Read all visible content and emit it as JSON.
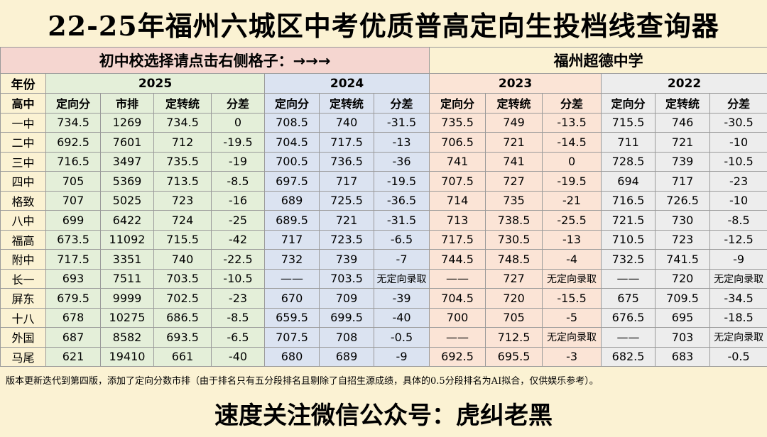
{
  "title": "22-25年福州六城区中考优质普高定向生投档线查询器",
  "selector": {
    "prompt": "初中校选择请点击右侧格子：→→→",
    "selected_school": "福州超德中学"
  },
  "header": {
    "year_label": "年份",
    "school_label": "高中",
    "years": [
      "2025",
      "2024",
      "2023",
      "2022"
    ],
    "cols_2025": [
      "定向分",
      "市排",
      "定转统",
      "分差"
    ],
    "cols_other": [
      "定向分",
      "定转统",
      "分差"
    ]
  },
  "rows": [
    {
      "school": "一中",
      "y2025": [
        "734.5",
        "1269",
        "734.5",
        "0"
      ],
      "y2024": [
        "708.5",
        "740",
        "-31.5"
      ],
      "y2023": [
        "735.5",
        "749",
        "-13.5"
      ],
      "y2022": [
        "715.5",
        "746",
        "-30.5"
      ]
    },
    {
      "school": "二中",
      "y2025": [
        "692.5",
        "7601",
        "712",
        "-19.5"
      ],
      "y2024": [
        "704.5",
        "717.5",
        "-13"
      ],
      "y2023": [
        "706.5",
        "721",
        "-14.5"
      ],
      "y2022": [
        "711",
        "721",
        "-10"
      ]
    },
    {
      "school": "三中",
      "y2025": [
        "716.5",
        "3497",
        "735.5",
        "-19"
      ],
      "y2024": [
        "700.5",
        "736.5",
        "-36"
      ],
      "y2023": [
        "741",
        "741",
        "0"
      ],
      "y2022": [
        "728.5",
        "739",
        "-10.5"
      ]
    },
    {
      "school": "四中",
      "y2025": [
        "705",
        "5369",
        "713.5",
        "-8.5"
      ],
      "y2024": [
        "697.5",
        "717",
        "-19.5"
      ],
      "y2023": [
        "707.5",
        "727",
        "-19.5"
      ],
      "y2022": [
        "694",
        "717",
        "-23"
      ]
    },
    {
      "school": "格致",
      "y2025": [
        "707",
        "5025",
        "723",
        "-16"
      ],
      "y2024": [
        "689",
        "725.5",
        "-36.5"
      ],
      "y2023": [
        "714",
        "735",
        "-21"
      ],
      "y2022": [
        "716.5",
        "726.5",
        "-10"
      ]
    },
    {
      "school": "八中",
      "y2025": [
        "699",
        "6422",
        "724",
        "-25"
      ],
      "y2024": [
        "689.5",
        "721",
        "-31.5"
      ],
      "y2023": [
        "713",
        "738.5",
        "-25.5"
      ],
      "y2022": [
        "721.5",
        "730",
        "-8.5"
      ]
    },
    {
      "school": "福高",
      "y2025": [
        "673.5",
        "11092",
        "715.5",
        "-42"
      ],
      "y2024": [
        "717",
        "723.5",
        "-6.5"
      ],
      "y2023": [
        "717.5",
        "730.5",
        "-13"
      ],
      "y2022": [
        "710.5",
        "723",
        "-12.5"
      ]
    },
    {
      "school": "附中",
      "y2025": [
        "717.5",
        "3351",
        "740",
        "-22.5"
      ],
      "y2024": [
        "732",
        "739",
        "-7"
      ],
      "y2023": [
        "744.5",
        "748.5",
        "-4"
      ],
      "y2022": [
        "732.5",
        "741.5",
        "-9"
      ]
    },
    {
      "school": "长一",
      "y2025": [
        "693",
        "7511",
        "703.5",
        "-10.5"
      ],
      "y2024": [
        "——",
        "703.5",
        "无定向录取"
      ],
      "y2023": [
        "——",
        "727",
        "无定向录取"
      ],
      "y2022": [
        "——",
        "720",
        "无定向录取"
      ]
    },
    {
      "school": "屏东",
      "y2025": [
        "679.5",
        "9999",
        "702.5",
        "-23"
      ],
      "y2024": [
        "670",
        "709",
        "-39"
      ],
      "y2023": [
        "704.5",
        "720",
        "-15.5"
      ],
      "y2022": [
        "675",
        "709.5",
        "-34.5"
      ]
    },
    {
      "school": "十八",
      "y2025": [
        "678",
        "10275",
        "686.5",
        "-8.5"
      ],
      "y2024": [
        "659.5",
        "699.5",
        "-40"
      ],
      "y2023": [
        "700",
        "705",
        "-5"
      ],
      "y2022": [
        "676.5",
        "695",
        "-18.5"
      ]
    },
    {
      "school": "外国",
      "y2025": [
        "687",
        "8582",
        "693.5",
        "-6.5"
      ],
      "y2024": [
        "707.5",
        "708",
        "-0.5"
      ],
      "y2023": [
        "——",
        "712.5",
        "无定向录取"
      ],
      "y2022": [
        "——",
        "703",
        "无定向录取"
      ]
    },
    {
      "school": "马尾",
      "y2025": [
        "621",
        "19410",
        "661",
        "-40"
      ],
      "y2024": [
        "680",
        "689",
        "-9"
      ],
      "y2023": [
        "692.5",
        "695.5",
        "-3"
      ],
      "y2022": [
        "682.5",
        "683",
        "-0.5"
      ]
    }
  ],
  "note": "版本更新迭代到第四版，添加了定向分数市排（由于排名只有五分段排名且剔除了自招生源成绩，具体的0.5分段排名为AI拟合，仅供娱乐参考）。",
  "footer": "速度关注微信公众号：虎纠老黑",
  "colors": {
    "background": "#fbf2d3",
    "col_2025": "#e4efd9",
    "col_2024": "#dbe3f1",
    "col_2023": "#fbe4d6",
    "col_2022": "#ededed",
    "prompt_bg": "#f5d6d0"
  }
}
